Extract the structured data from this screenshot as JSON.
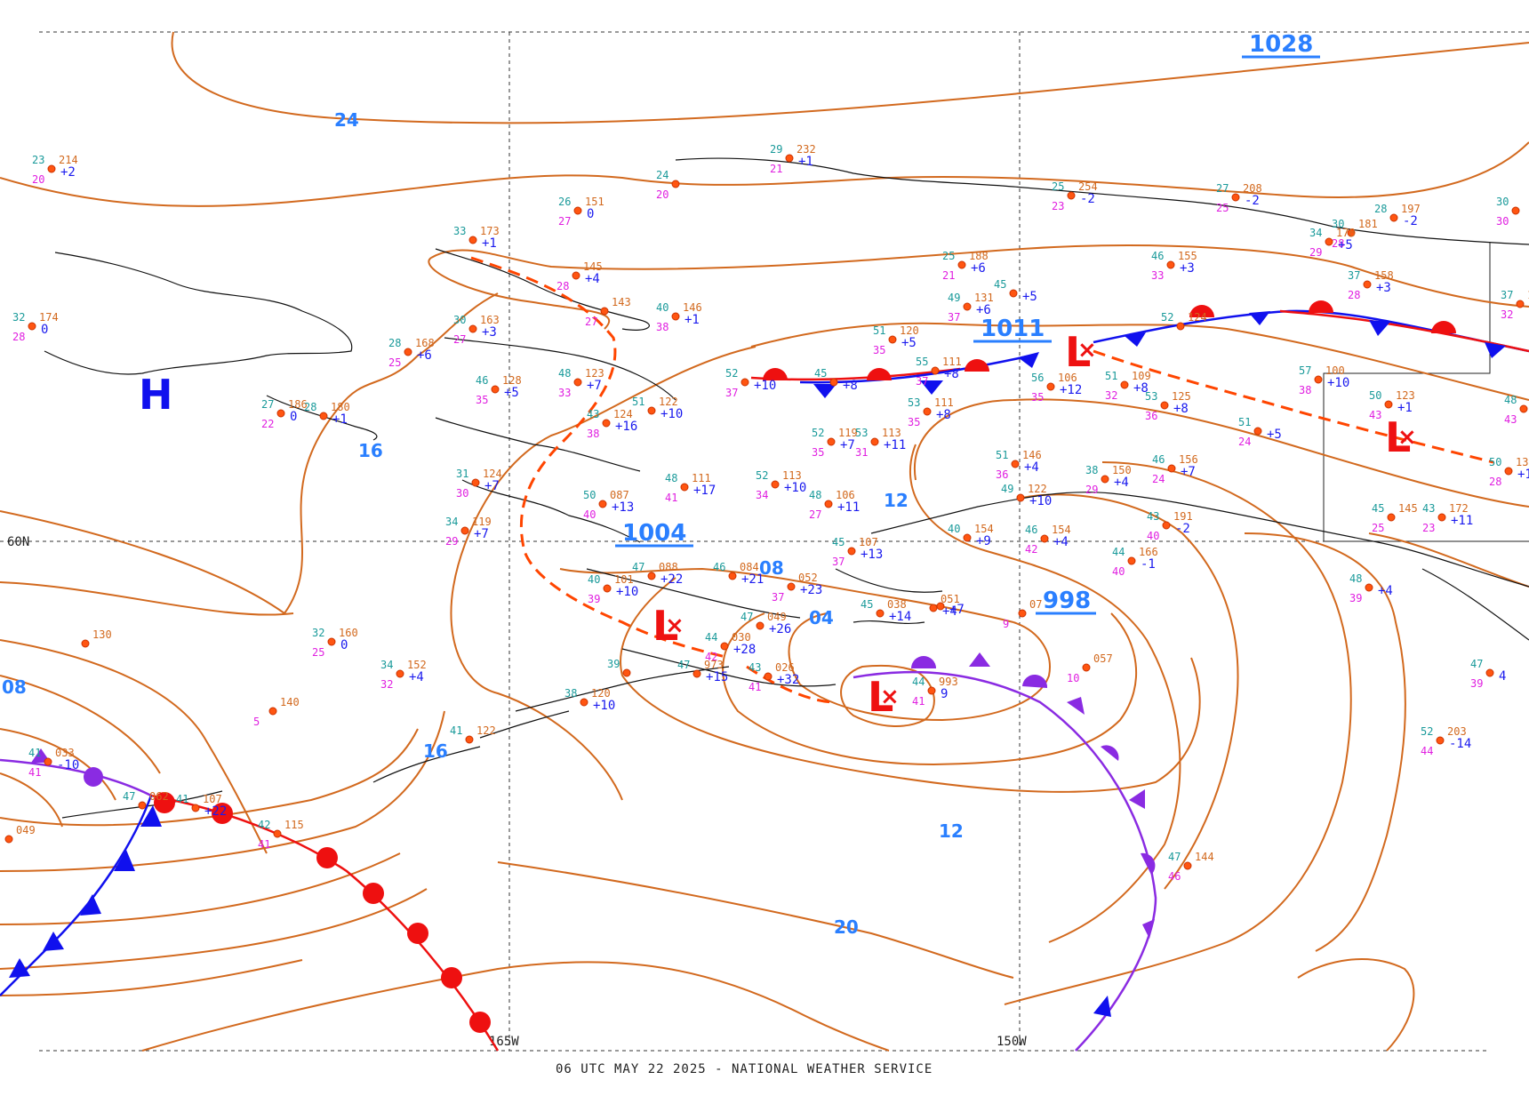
{
  "footer": "06 UTC MAY 22 2025 - NATIONAL WEATHER SERVICE",
  "grid_labels": {
    "lat60": "60N",
    "lon165": "165W",
    "lon150": "150W"
  },
  "pressure_centers": [
    {
      "label": "1028",
      "type": "value"
    },
    {
      "label": "1011",
      "type": "value"
    },
    {
      "label": "1004",
      "type": "value"
    },
    {
      "label": "998",
      "type": "value"
    }
  ],
  "symbols": {
    "low": "L",
    "high": "H",
    "cross": "×"
  },
  "isobar_labels": [
    "24",
    "16",
    "12",
    "08",
    "04",
    "16",
    "12",
    "20",
    "08"
  ],
  "stations": [
    {
      "t": "23",
      "p": "214",
      "d": "20",
      "tend": "+2"
    },
    {
      "t": "32",
      "p": "174",
      "d": "28",
      "tend": "0"
    },
    {
      "t": "33",
      "p": "173",
      "d": "",
      "tend": "+1"
    },
    {
      "t": "26",
      "p": "151",
      "d": "27",
      "tend": "0"
    },
    {
      "t": "24",
      "p": "",
      "d": "20",
      "tend": ""
    },
    {
      "t": "29",
      "p": "232",
      "d": "21",
      "tend": "+1"
    },
    {
      "t": "25",
      "p": "254",
      "d": "23",
      "tend": "-2"
    },
    {
      "t": "27",
      "p": "208",
      "d": "25",
      "tend": "-2"
    },
    {
      "t": "30",
      "p": "181",
      "d": "28",
      "tend": ""
    },
    {
      "t": "28",
      "p": "197",
      "d": "",
      "tend": "-2"
    },
    {
      "t": "30",
      "p": "",
      "d": "30",
      "tend": ""
    },
    {
      "t": "34",
      "p": "178",
      "d": "29",
      "tend": "+5"
    },
    {
      "t": "37",
      "p": "158",
      "d": "28",
      "tend": "+3"
    },
    {
      "t": "37",
      "p": "161",
      "d": "32",
      "tend": "+5"
    },
    {
      "t": "",
      "p": "145",
      "d": "28",
      "tend": "+4"
    },
    {
      "t": "",
      "p": "143",
      "d": "27",
      "tend": ""
    },
    {
      "t": "40",
      "p": "146",
      "d": "38",
      "tend": "+1"
    },
    {
      "t": "30",
      "p": "163",
      "d": "27",
      "tend": "+3"
    },
    {
      "t": "28",
      "p": "168",
      "d": "25",
      "tend": "+6"
    },
    {
      "t": "46",
      "p": "128",
      "d": "35",
      "tend": "+5"
    },
    {
      "t": "27",
      "p": "186",
      "d": "22",
      "tend": "0"
    },
    {
      "t": "28",
      "p": "180",
      "d": "",
      "tend": "+1"
    },
    {
      "t": "48",
      "p": "123",
      "d": "33",
      "tend": "+7"
    },
    {
      "t": "43",
      "p": "124",
      "d": "38",
      "tend": "+16"
    },
    {
      "t": "51",
      "p": "122",
      "d": "",
      "tend": "+10"
    },
    {
      "t": "25",
      "p": "188",
      "d": "21",
      "tend": "+6"
    },
    {
      "t": "45",
      "p": "",
      "d": "",
      "tend": "+5"
    },
    {
      "t": "49",
      "p": "131",
      "d": "37",
      "tend": "+6"
    },
    {
      "t": "46",
      "p": "155",
      "d": "33",
      "tend": "+3"
    },
    {
      "t": "51",
      "p": "120",
      "d": "35",
      "tend": "+5"
    },
    {
      "t": "52",
      "p": "",
      "d": "37",
      "tend": "+10"
    },
    {
      "t": "45",
      "p": "",
      "d": "",
      "tend": "+8"
    },
    {
      "t": "55",
      "p": "111",
      "d": "37",
      "tend": "+8"
    },
    {
      "t": "53",
      "p": "111",
      "d": "35",
      "tend": "+8"
    },
    {
      "t": "52",
      "p": "124",
      "d": "",
      "tend": ""
    },
    {
      "t": "56",
      "p": "106",
      "d": "35",
      "tend": "+12"
    },
    {
      "t": "51",
      "p": "109",
      "d": "32",
      "tend": "+8"
    },
    {
      "t": "53",
      "p": "125",
      "d": "36",
      "tend": "+8"
    },
    {
      "t": "57",
      "p": "100",
      "d": "38",
      "tend": "+10"
    },
    {
      "t": "50",
      "p": "123",
      "d": "43",
      "tend": "+1"
    },
    {
      "t": "48",
      "p": "124",
      "d": "43",
      "tend": ""
    },
    {
      "t": "52",
      "p": "119",
      "d": "35",
      "tend": "+7"
    },
    {
      "t": "53",
      "p": "113",
      "d": "31",
      "tend": "+11"
    },
    {
      "t": "51",
      "p": "",
      "d": "24",
      "tend": "+5"
    },
    {
      "t": "51",
      "p": "146",
      "d": "36",
      "tend": "+4"
    },
    {
      "t": "38",
      "p": "150",
      "d": "29",
      "tend": "+4"
    },
    {
      "t": "46",
      "p": "156",
      "d": "24",
      "tend": "+7"
    },
    {
      "t": "50",
      "p": "133",
      "d": "28",
      "tend": "+12"
    },
    {
      "t": "31",
      "p": "124",
      "d": "30",
      "tend": "+7"
    },
    {
      "t": "48",
      "p": "111",
      "d": "41",
      "tend": "+17"
    },
    {
      "t": "52",
      "p": "113",
      "d": "34",
      "tend": "+10"
    },
    {
      "t": "48",
      "p": "106",
      "d": "27",
      "tend": "+11"
    },
    {
      "t": "49",
      "p": "122",
      "d": "",
      "tend": "+10"
    },
    {
      "t": "34",
      "p": "119",
      "d": "29",
      "tend": "+7"
    },
    {
      "t": "50",
      "p": "087",
      "d": "40",
      "tend": "+13"
    },
    {
      "t": "45",
      "p": "145",
      "d": "25",
      "tend": ""
    },
    {
      "t": "43",
      "p": "172",
      "d": "23",
      "tend": "+11"
    },
    {
      "t": "43",
      "p": "191",
      "d": "40",
      "tend": "-2"
    },
    {
      "t": "40",
      "p": "154",
      "d": "",
      "tend": "+9"
    },
    {
      "t": "46",
      "p": "154",
      "d": "42",
      "tend": "+4"
    },
    {
      "t": "44",
      "p": "166",
      "d": "40",
      "tend": "-1"
    },
    {
      "t": "45",
      "p": "107",
      "d": "37",
      "tend": "+13"
    },
    {
      "t": "47",
      "p": "088",
      "d": "",
      "tend": "+22"
    },
    {
      "t": "46",
      "p": "084",
      "d": "",
      "tend": "+21"
    },
    {
      "t": "40",
      "p": "101",
      "d": "39",
      "tend": "+10"
    },
    {
      "t": "",
      "p": "052",
      "d": "37",
      "tend": "+23"
    },
    {
      "t": "",
      "p": "",
      "d": "",
      "tend": "+7"
    },
    {
      "t": "45",
      "p": "038",
      "d": "",
      "tend": "+14"
    },
    {
      "t": "47",
      "p": "049",
      "d": "",
      "tend": "+26"
    },
    {
      "t": "",
      "p": "051",
      "d": "",
      "tend": "+4"
    },
    {
      "t": "",
      "p": "130",
      "d": "",
      "tend": ""
    },
    {
      "t": "32",
      "p": "160",
      "d": "25",
      "tend": "0"
    },
    {
      "t": "34",
      "p": "152",
      "d": "32",
      "tend": "+4"
    },
    {
      "t": "",
      "p": "140",
      "d": "5",
      "tend": ""
    },
    {
      "t": "44",
      "p": "030",
      "d": "42",
      "tend": "+28"
    },
    {
      "t": "43",
      "p": "026",
      "d": "41",
      "tend": "+32"
    },
    {
      "t": "47",
      "p": "973",
      "d": "",
      "tend": "+15"
    },
    {
      "t": "39",
      "p": "",
      "d": "",
      "tend": ""
    },
    {
      "t": "38",
      "p": "120",
      "d": "",
      "tend": "+10"
    },
    {
      "t": "44",
      "p": "993",
      "d": "41",
      "tend": "9"
    },
    {
      "t": "",
      "p": "057",
      "d": "10",
      "tend": ""
    },
    {
      "t": "",
      "p": "07",
      "d": "9",
      "tend": ""
    },
    {
      "t": "41",
      "p": "122",
      "d": "",
      "tend": ""
    },
    {
      "t": "41",
      "p": "033",
      "d": "41",
      "tend": "-10"
    },
    {
      "t": "47",
      "p": "062",
      "d": "",
      "tend": ""
    },
    {
      "t": "41",
      "p": "107",
      "d": "",
      "tend": "+22"
    },
    {
      "t": "42",
      "p": "115",
      "d": "41",
      "tend": ""
    },
    {
      "t": "",
      "p": "049",
      "d": "",
      "tend": ""
    },
    {
      "t": "47",
      "p": "144",
      "d": "46",
      "tend": ""
    },
    {
      "t": "52",
      "p": "203",
      "d": "44",
      "tend": "-14"
    },
    {
      "t": "48",
      "p": "",
      "d": "39",
      "tend": "+4"
    },
    {
      "t": "47",
      "p": "",
      "d": "39",
      "tend": "4"
    }
  ]
}
